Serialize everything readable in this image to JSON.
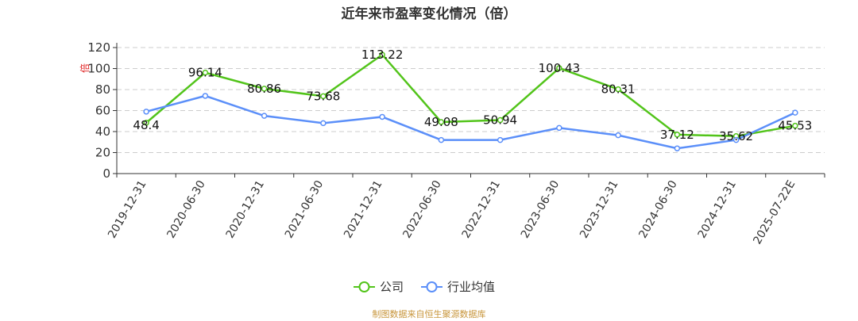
{
  "chart_data": {
    "type": "line",
    "title": "近年来市盈率变化情况（倍）",
    "ylabel": "倍",
    "ylim": [
      0,
      120
    ],
    "yticks": [
      0,
      20,
      40,
      60,
      80,
      100,
      120
    ],
    "grid": true,
    "legend_position": "bottom",
    "categories": [
      "2019-12-31",
      "2020-06-30",
      "2020-12-31",
      "2021-06-30",
      "2021-12-31",
      "2022-06-30",
      "2022-12-31",
      "2023-06-30",
      "2023-12-31",
      "2024-06-30",
      "2024-12-31",
      "2025-07-22E"
    ],
    "series": [
      {
        "name": "公司",
        "color": "#52c41a",
        "values": [
          48.4,
          96.14,
          80.86,
          73.68,
          113.22,
          49.08,
          50.94,
          100.43,
          80.31,
          37.12,
          35.62,
          45.53
        ],
        "labels": [
          "48.4",
          "96.14",
          "80.86",
          "73.68",
          "113.22",
          "49.08",
          "50.94",
          "100.43",
          "80.31",
          "37.12",
          "35.62",
          "45.53"
        ]
      },
      {
        "name": "行业均值",
        "color": "#5b8ff9",
        "values": [
          59,
          74,
          55,
          48,
          54,
          32,
          32,
          43.5,
          36.5,
          24,
          32,
          58
        ]
      }
    ],
    "source": "制图数据来自恒生聚源数据库"
  }
}
